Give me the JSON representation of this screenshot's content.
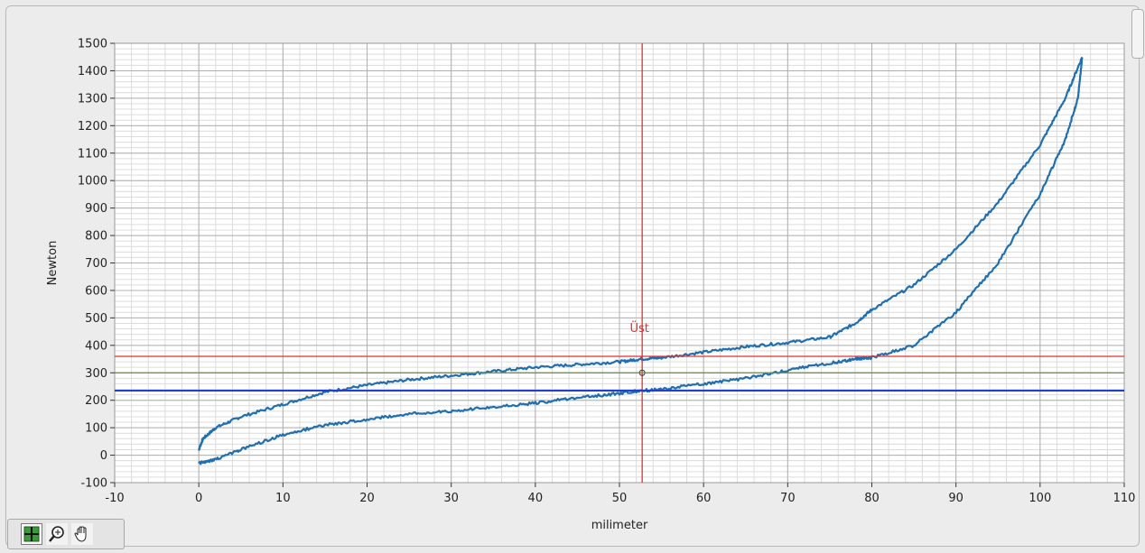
{
  "colors": {
    "trace": "#1f6fb0",
    "cursor_upper": "#e03030",
    "cursor_mid": "#6a8f3a",
    "cursor_lower": "#1f3fd0",
    "grid_major": "#b0b0b0",
    "grid_minor": "#dcdcdc",
    "plot_bg": "#ffffff"
  },
  "palette": {
    "tools": [
      {
        "name": "cursor-move-tool",
        "icon": "crosshair-grid-icon",
        "active": true
      },
      {
        "name": "zoom-tool",
        "icon": "magnifier-icon",
        "active": false
      },
      {
        "name": "pan-tool",
        "icon": "hand-icon",
        "active": false
      }
    ]
  },
  "chart_data": {
    "type": "line",
    "title": "",
    "xlabel": "milimeter",
    "ylabel": "Newton",
    "xlim": [
      -10,
      110
    ],
    "ylim": [
      -100,
      1500
    ],
    "x_ticks": [
      -10,
      0,
      10,
      20,
      30,
      40,
      50,
      60,
      70,
      80,
      90,
      100,
      110
    ],
    "y_ticks": [
      -100,
      0,
      100,
      200,
      300,
      400,
      500,
      600,
      700,
      800,
      900,
      1000,
      1100,
      1200,
      1300,
      1400,
      1500
    ],
    "grid": true,
    "legend": "none",
    "series": [
      {
        "x": [
          0,
          0.5,
          2,
          5,
          10,
          15,
          20,
          25,
          30,
          35,
          40,
          45,
          50,
          52.5,
          55,
          60,
          65,
          70,
          75,
          78,
          80,
          85,
          90,
          95,
          100,
          103,
          105
        ],
        "y": [
          20,
          60,
          100,
          140,
          185,
          230,
          255,
          275,
          290,
          305,
          320,
          330,
          340,
          350,
          355,
          375,
          395,
          410,
          430,
          480,
          530,
          620,
          750,
          920,
          1130,
          1300,
          1450
        ]
      },
      {
        "x": [
          105,
          104.5,
          103,
          100,
          95,
          90,
          85,
          80,
          78,
          75,
          70,
          65,
          60,
          55,
          52.5,
          50,
          45,
          40,
          35,
          30,
          25,
          20,
          15,
          10,
          5,
          2,
          0
        ],
        "y": [
          1450,
          1300,
          1150,
          950,
          700,
          520,
          400,
          355,
          350,
          335,
          310,
          280,
          260,
          240,
          235,
          225,
          210,
          190,
          175,
          160,
          150,
          130,
          110,
          75,
          20,
          -15,
          -30
        ]
      }
    ],
    "cursors": [
      {
        "label": "Üst",
        "y": 360,
        "x": 52.7,
        "color": "#e03030"
      },
      {
        "label": "",
        "y": 300,
        "color": "#6a8f3a"
      },
      {
        "label": "",
        "y": 235,
        "color": "#1f3fd0"
      }
    ]
  }
}
